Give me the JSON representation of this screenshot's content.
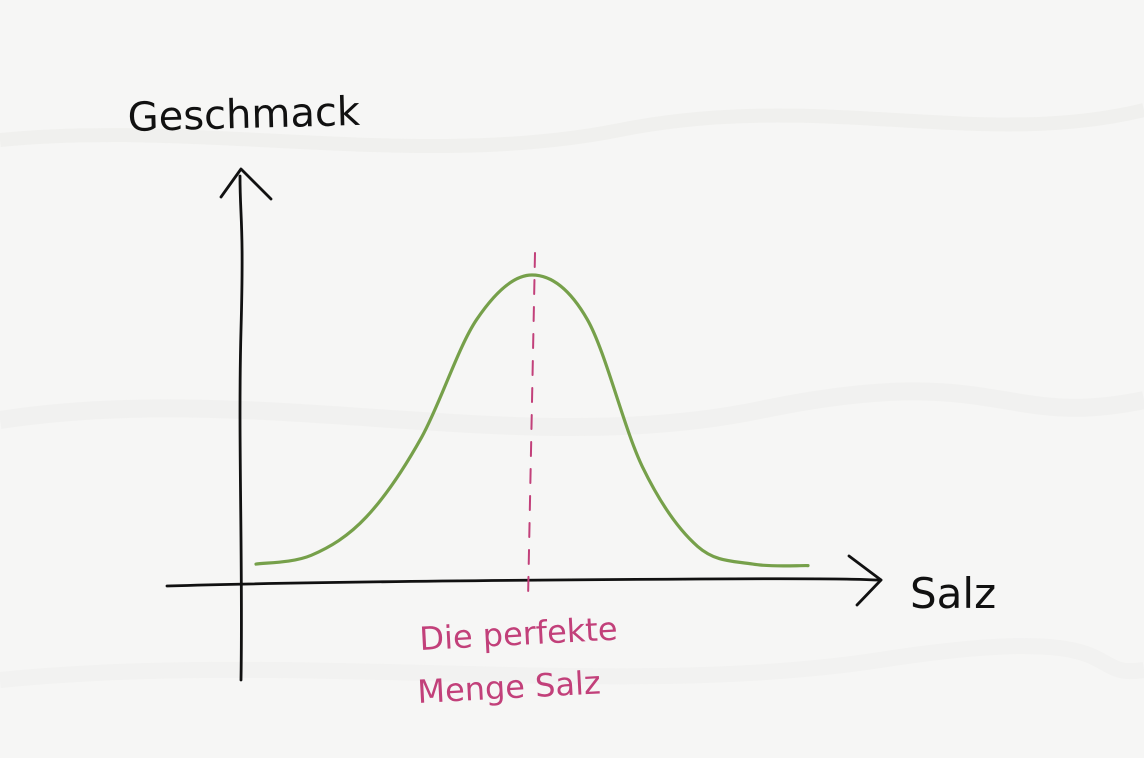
{
  "chart_data": {
    "type": "line",
    "title": "",
    "xlabel": "Salz",
    "ylabel": "Geschmack",
    "grid": false,
    "legend": "none",
    "series": [
      {
        "color": "#76a04a",
        "shape": "bell-curve",
        "x": [
          0,
          2,
          4,
          6,
          8,
          10,
          12,
          14,
          16,
          18,
          20
        ],
        "y": [
          0.02,
          0.05,
          0.18,
          0.45,
          0.85,
          1.0,
          0.85,
          0.35,
          0.08,
          0.02,
          0.015
        ]
      }
    ],
    "annotations": [
      {
        "type": "vertical-dashed-line",
        "x": 10,
        "color": "#c2407a",
        "label_lines": [
          "Die perfekte",
          "Menge Salz"
        ]
      }
    ]
  },
  "colors": {
    "background": "#f6f6f5",
    "axis": "#111111",
    "curve": "#76a04a",
    "annotation": "#c2407a"
  }
}
